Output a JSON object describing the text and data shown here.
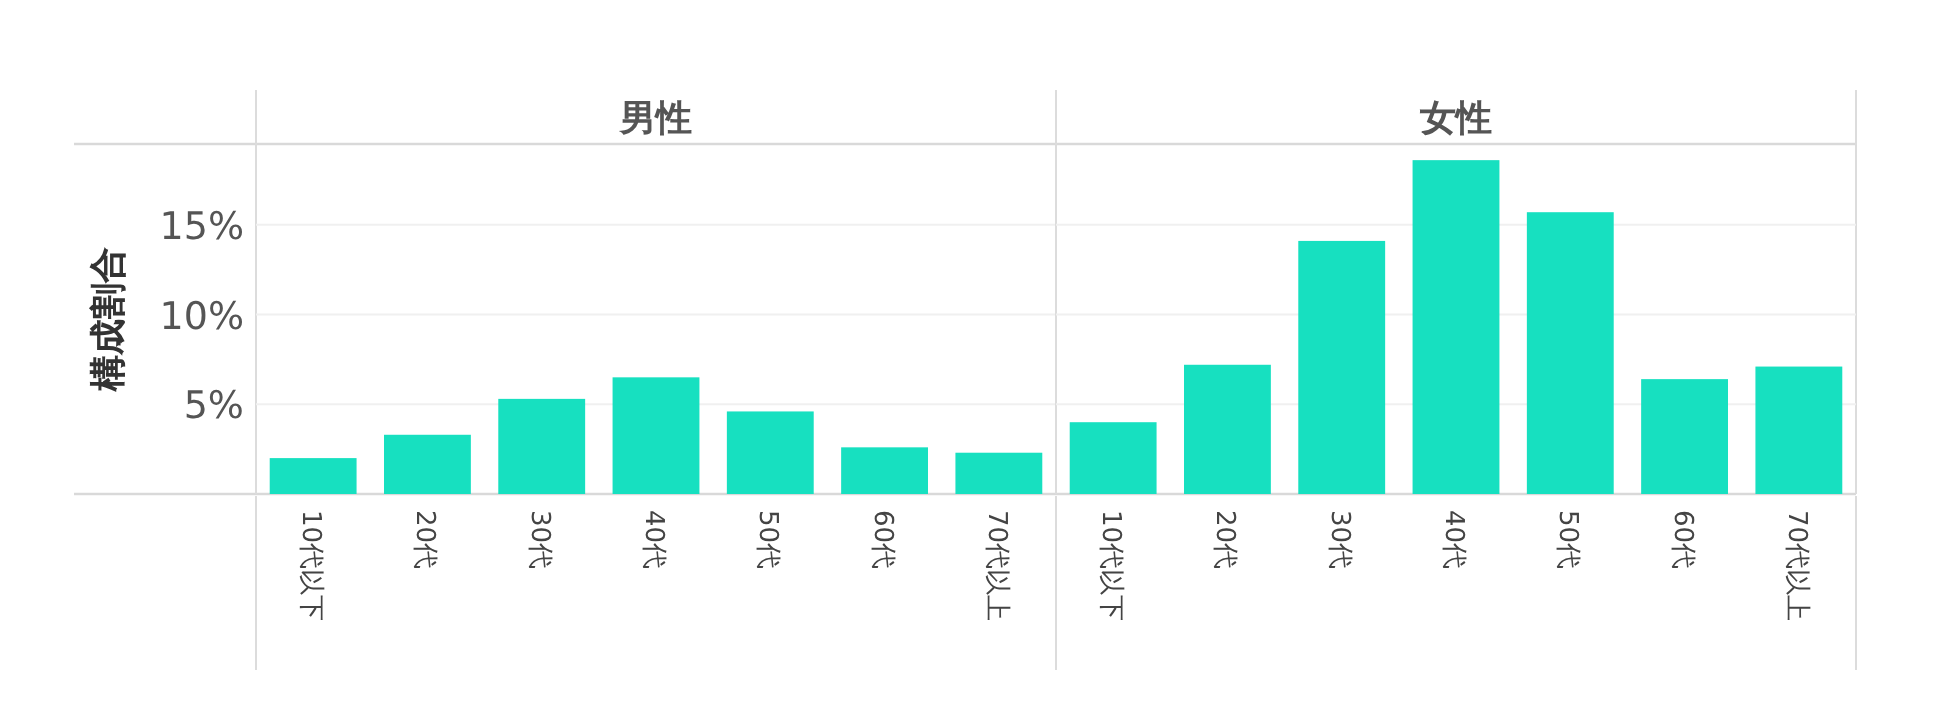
{
  "chart_data": [
    {
      "type": "bar",
      "title": "男性",
      "ylabel": "構成割合",
      "categories": [
        "10代以下",
        "20代",
        "30代",
        "40代",
        "50代",
        "60代",
        "70代以上"
      ],
      "series": [
        {
          "color": "#17e0c0",
          "values": [
            2.0,
            3.3,
            5.3,
            6.5,
            4.6,
            2.6,
            2.3
          ]
        }
      ],
      "ylim": [
        0,
        19.5
      ],
      "yticks": [
        {
          "value": 5,
          "label": "5%"
        },
        {
          "value": 10,
          "label": "10%"
        },
        {
          "value": 15,
          "label": "15%"
        }
      ],
      "grid": "y"
    },
    {
      "type": "bar",
      "title": "女性",
      "categories": [
        "10代以下",
        "20代",
        "30代",
        "40代",
        "50代",
        "60代",
        "70代以上"
      ],
      "series": [
        {
          "color": "#17e0c0",
          "values": [
            4.0,
            7.2,
            14.1,
            18.6,
            15.7,
            6.4,
            7.1
          ]
        }
      ],
      "ylim": [
        0,
        19.5
      ],
      "yticks": [
        5,
        10,
        15
      ],
      "grid": "y",
      "tick_labels": "x"
    }
  ]
}
